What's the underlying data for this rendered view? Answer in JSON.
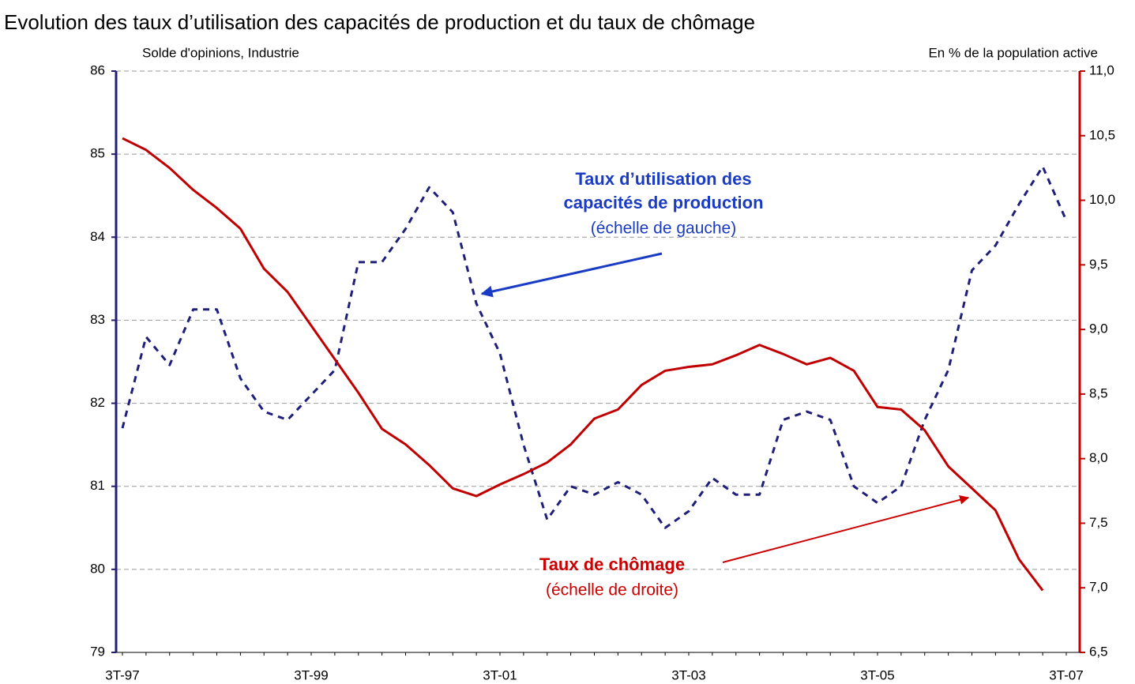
{
  "chart_data": {
    "type": "line",
    "title": "Evolution des taux d’utilisation des capacités de production et du taux de chômage",
    "y_label": "Solde d'opinions, Industrie",
    "y2_label": "En % de la population active",
    "categories": [
      "3T-97",
      null,
      null,
      null,
      null,
      null,
      null,
      null,
      "3T-99",
      null,
      null,
      null,
      null,
      null,
      null,
      null,
      "3T-01",
      null,
      null,
      null,
      null,
      null,
      null,
      null,
      "3T-03",
      null,
      null,
      null,
      null,
      null,
      null,
      null,
      "3T-05",
      null,
      null,
      null,
      null,
      null,
      null,
      null,
      "3T-07"
    ],
    "series": [
      {
        "color": "#1f1f7a",
        "dash": true,
        "axis": "y",
        "values": [
          81.7,
          82.8,
          82.46,
          83.13,
          83.13,
          82.3,
          81.9,
          81.8,
          82.1,
          82.4,
          83.7,
          83.7,
          84.1,
          84.6,
          84.3,
          83.2,
          82.6,
          81.5,
          80.6,
          81.0,
          80.9,
          81.05,
          80.9,
          80.5,
          80.7,
          81.1,
          80.9,
          80.9,
          81.8,
          81.9,
          81.8,
          81.0,
          80.8,
          81.0,
          81.8,
          82.4,
          83.6,
          83.9,
          84.4,
          84.85,
          84.2
        ]
      },
      {
        "color": "#c00000",
        "dash": false,
        "axis": "y2",
        "values": [
          10.48,
          10.39,
          10.25,
          10.08,
          9.94,
          9.78,
          9.47,
          9.29,
          9.03,
          8.77,
          8.51,
          8.23,
          8.11,
          7.95,
          7.77,
          7.71,
          7.8,
          7.88,
          7.97,
          8.11,
          8.31,
          8.38,
          8.57,
          8.68,
          8.71,
          8.73,
          8.8,
          8.88,
          8.81,
          8.73,
          8.78,
          8.68,
          8.4,
          8.38,
          8.22,
          7.94,
          7.77,
          7.6,
          7.22,
          6.98,
          null
        ]
      }
    ],
    "ylim": [
      79,
      86
    ],
    "yticks": [
      79,
      80,
      81,
      82,
      83,
      84,
      85,
      86
    ],
    "y2lim": [
      6.5,
      11
    ],
    "y2ticks": [
      {
        "value": 6.5,
        "label": "6,5"
      },
      {
        "value": 7,
        "label": "7,0"
      },
      {
        "value": 7.5,
        "label": "7,5"
      },
      {
        "value": 8,
        "label": "8,0"
      },
      {
        "value": 8.5,
        "label": "8,5"
      },
      {
        "value": 9,
        "label": "9,0"
      },
      {
        "value": 9.5,
        "label": "9,5"
      },
      {
        "value": 10,
        "label": "10,0"
      },
      {
        "value": 10.5,
        "label": "10,5"
      },
      {
        "value": 11,
        "label": "11,0"
      }
    ],
    "grid": true,
    "annotations": [
      {
        "lines": [
          "Taux d’utilisation des",
          "capacités de production"
        ],
        "note": "(échelle de gauche)",
        "color": "#1a3cc4"
      },
      {
        "lines": [
          "Taux de chômage"
        ],
        "note": "(échelle de droite)",
        "color": "#cc0000"
      }
    ]
  }
}
